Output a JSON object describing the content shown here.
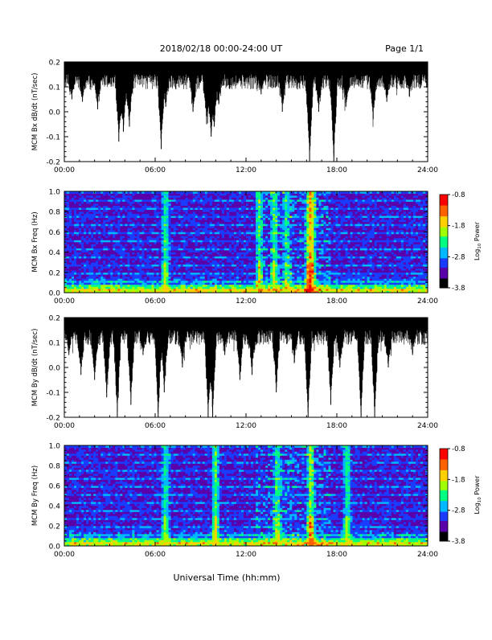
{
  "header": {
    "date_range": "2018/02/18  00:00-24:00 UT",
    "page": "Page 1/1"
  },
  "xlabel": "Universal Time (hh:mm)",
  "colorbar": {
    "title": "Log",
    "subscript": "10",
    "title_suffix": " Power",
    "ticks": [
      "-0.8",
      "-1.8",
      "-2.8",
      "-3.8"
    ],
    "colors": [
      "#000000",
      "#5a00aa",
      "#1a3cff",
      "#00b8ff",
      "#00ff80",
      "#a0ff00",
      "#ffd000",
      "#ff6000",
      "#ff0000"
    ]
  },
  "chart_data": [
    {
      "type": "line",
      "title": "",
      "ylabel": "MCM Bx dB/dt (nT/sec)",
      "xlim": [
        "00:00",
        "24:00"
      ],
      "xticks": [
        "00:00",
        "06:00",
        "12:00",
        "18:00",
        "24:00"
      ],
      "ylim": [
        -0.2,
        0.2
      ],
      "yticks": [
        "0.2",
        "0.1",
        "0.0",
        "-0.1",
        "-0.2"
      ],
      "baseline": 0.2,
      "envelope_min": [
        {
          "t": 0.5,
          "v": 0.05
        },
        {
          "t": 1.2,
          "v": 0.04
        },
        {
          "t": 2.2,
          "v": 0.01
        },
        {
          "t": 3.6,
          "v": -0.12
        },
        {
          "t": 3.9,
          "v": -0.08
        },
        {
          "t": 4.3,
          "v": -0.06
        },
        {
          "t": 6.4,
          "v": -0.15
        },
        {
          "t": 6.7,
          "v": 0.02
        },
        {
          "t": 8.5,
          "v": 0.0
        },
        {
          "t": 9.4,
          "v": -0.05
        },
        {
          "t": 9.7,
          "v": -0.1
        },
        {
          "t": 9.9,
          "v": -0.06
        },
        {
          "t": 10.2,
          "v": 0.03
        },
        {
          "t": 13.0,
          "v": 0.07
        },
        {
          "t": 14.4,
          "v": 0.0
        },
        {
          "t": 15.4,
          "v": 0.09
        },
        {
          "t": 16.2,
          "v": -0.2
        },
        {
          "t": 16.8,
          "v": 0.0
        },
        {
          "t": 17.8,
          "v": -0.2
        },
        {
          "t": 18.6,
          "v": 0.02
        },
        {
          "t": 20.4,
          "v": -0.03
        },
        {
          "t": 21.3,
          "v": 0.04
        },
        {
          "t": 22.8,
          "v": 0.06
        }
      ]
    },
    {
      "type": "heatmap",
      "ylabel": "MCM Bx Freq (Hz)",
      "xlim": [
        "00:00",
        "24:00"
      ],
      "xticks": [
        "00:00",
        "06:00",
        "12:00",
        "18:00",
        "24:00"
      ],
      "ylim": [
        0.0,
        1.0
      ],
      "yticks": [
        "1.0",
        "0.8",
        "0.6",
        "0.4",
        "0.2",
        "0.0"
      ],
      "zlim": [
        -3.8,
        -0.8
      ],
      "power_bursts": [
        {
          "t": 6.6,
          "level": -1.8
        },
        {
          "t": 12.8,
          "level": -2.0
        },
        {
          "t": 13.8,
          "level": -1.9
        },
        {
          "t": 16.1,
          "level": -0.9
        },
        {
          "t": 16.3,
          "level": -1.5
        },
        {
          "t": 14.6,
          "level": -2.3
        }
      ]
    },
    {
      "type": "line",
      "title": "",
      "ylabel": "MCM By dB/dt (nT/sec)",
      "xlim": [
        "00:00",
        "24:00"
      ],
      "xticks": [
        "00:00",
        "06:00",
        "12:00",
        "18:00",
        "24:00"
      ],
      "ylim": [
        -0.2,
        0.2
      ],
      "yticks": [
        "0.2",
        "0.1",
        "0.0",
        "-0.1",
        "-0.2"
      ],
      "baseline": 0.2,
      "envelope_min": [
        {
          "t": 0.3,
          "v": 0.05
        },
        {
          "t": 1.1,
          "v": -0.03
        },
        {
          "t": 2.0,
          "v": -0.05
        },
        {
          "t": 2.8,
          "v": -0.12
        },
        {
          "t": 3.5,
          "v": -0.2
        },
        {
          "t": 4.4,
          "v": -0.15
        },
        {
          "t": 5.2,
          "v": 0.05
        },
        {
          "t": 6.2,
          "v": -0.2
        },
        {
          "t": 6.6,
          "v": -0.1
        },
        {
          "t": 7.8,
          "v": 0.0
        },
        {
          "t": 9.5,
          "v": -0.2
        },
        {
          "t": 9.8,
          "v": -0.2
        },
        {
          "t": 10.6,
          "v": 0.05
        },
        {
          "t": 11.6,
          "v": -0.05
        },
        {
          "t": 12.4,
          "v": -0.03
        },
        {
          "t": 14.0,
          "v": -0.1
        },
        {
          "t": 15.2,
          "v": 0.02
        },
        {
          "t": 16.1,
          "v": -0.2
        },
        {
          "t": 17.6,
          "v": -0.15
        },
        {
          "t": 18.2,
          "v": 0.0
        },
        {
          "t": 19.6,
          "v": -0.2
        },
        {
          "t": 20.5,
          "v": -0.2
        },
        {
          "t": 21.4,
          "v": 0.0
        },
        {
          "t": 23.0,
          "v": 0.05
        }
      ]
    },
    {
      "type": "heatmap",
      "ylabel": "MCM By Freq (Hz)",
      "xlim": [
        "00:00",
        "24:00"
      ],
      "xticks": [
        "00:00",
        "06:00",
        "12:00",
        "18:00",
        "24:00"
      ],
      "ylim": [
        0.0,
        1.0
      ],
      "yticks": [
        "1.0",
        "0.8",
        "0.6",
        "0.4",
        "0.2",
        "0.0"
      ],
      "zlim": [
        -3.8,
        -0.8
      ],
      "power_bursts": [
        {
          "t": 6.6,
          "level": -2.0
        },
        {
          "t": 9.9,
          "level": -1.6
        },
        {
          "t": 14.0,
          "level": -2.0
        },
        {
          "t": 16.2,
          "level": -1.2
        },
        {
          "t": 18.6,
          "level": -1.9
        }
      ]
    }
  ]
}
